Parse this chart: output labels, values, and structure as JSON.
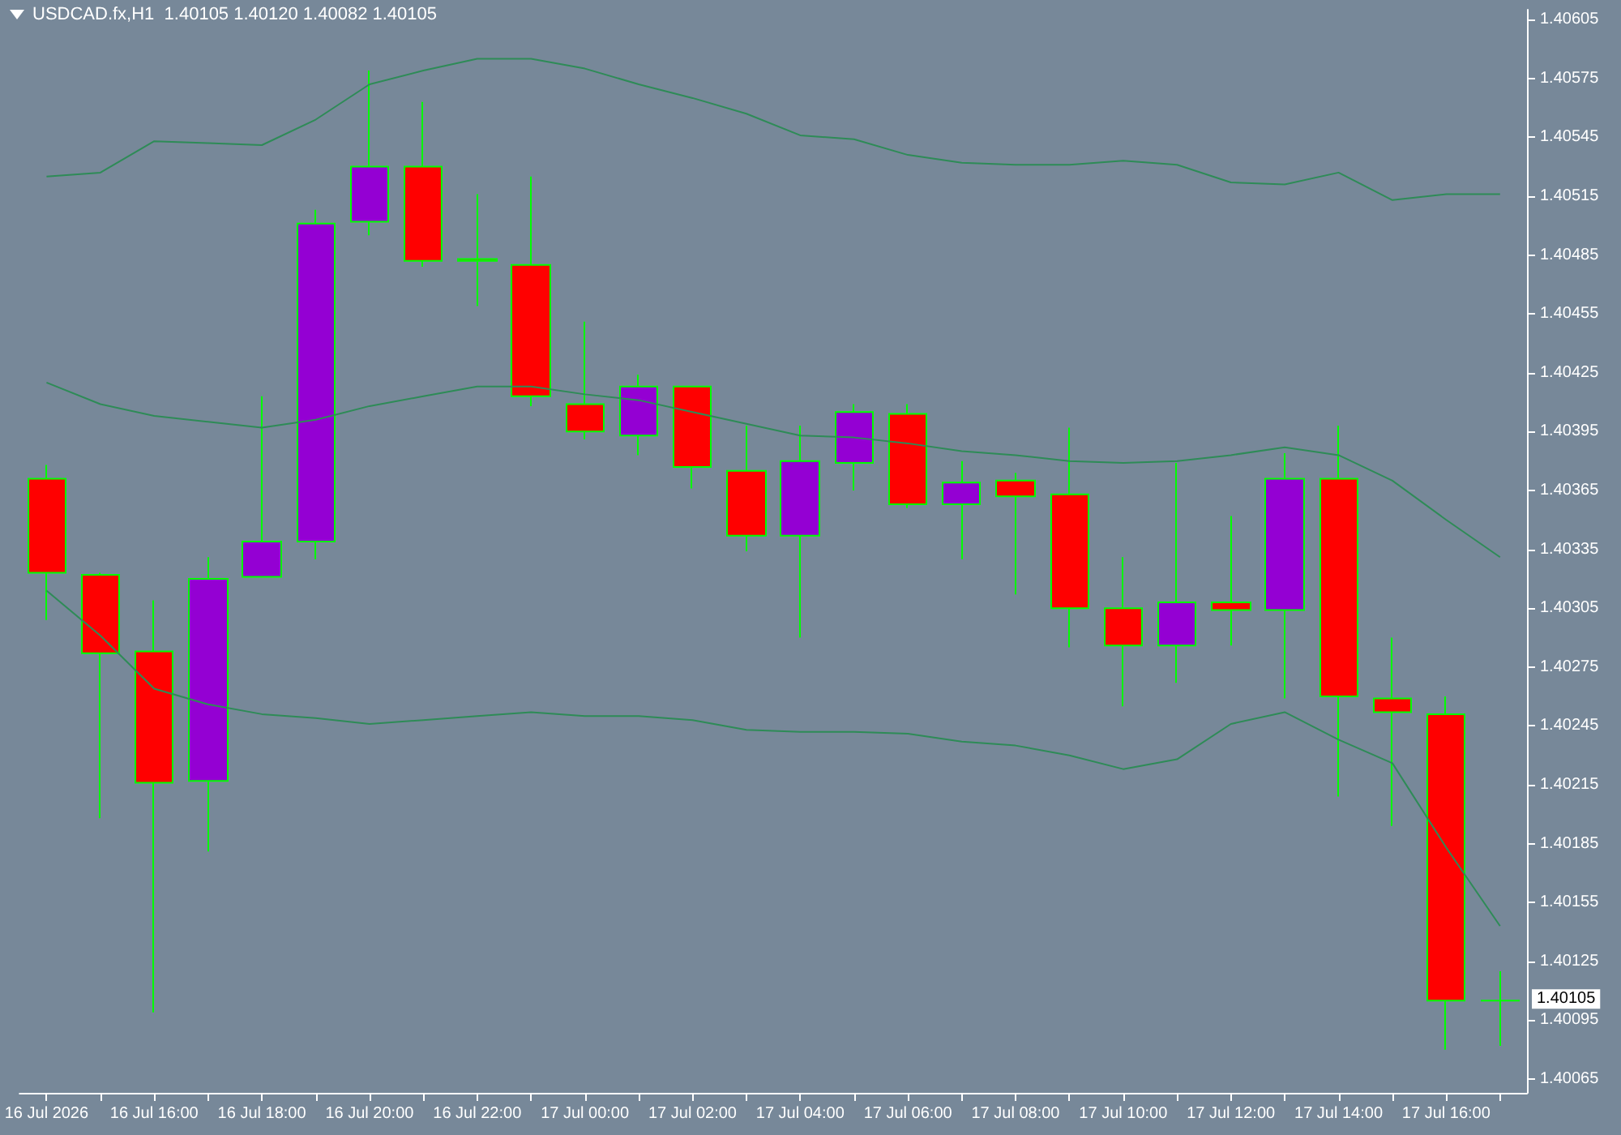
{
  "chart_data": {
    "type": "candlestick",
    "title": "USDCAD.fx,H1  1.40105 1.40120 1.40082 1.40105",
    "categories": [
      "16 Jul 2026",
      null,
      "16 Jul 16:00",
      null,
      "16 Jul 18:00",
      null,
      "16 Jul 20:00",
      null,
      "16 Jul 22:00",
      null,
      "17 Jul 00:00",
      null,
      "17 Jul 02:00",
      null,
      "17 Jul 04:00",
      null,
      "17 Jul 06:00",
      null,
      "17 Jul 08:00",
      null,
      "17 Jul 10:00",
      null,
      "17 Jul 12:00",
      null,
      "17 Jul 14:00",
      null,
      "17 Jul 16:00",
      null
    ],
    "ylim": [
      1.40058,
      1.4061
    ],
    "yticks": [
      1.40065,
      1.40095,
      1.40125,
      1.40155,
      1.40185,
      1.40215,
      1.40245,
      1.40275,
      1.40305,
      1.40335,
      1.40365,
      1.40395,
      1.40425,
      1.40455,
      1.40485,
      1.40515,
      1.40545,
      1.40575,
      1.40605
    ],
    "grid": false,
    "marker": "none",
    "annotations": [
      "1.40105"
    ],
    "series": [
      {
        "color": "#00ff00",
        "colors": [
          "#ff0000",
          "#ff0000",
          "#ff0000",
          "#9400d3",
          "#9400d3",
          "#9400d3",
          "#9400d3",
          "#ff0000",
          "#ff0000",
          "#ff0000",
          "#ff0000",
          "#9400d3",
          "#ff0000",
          "#ff0000",
          "#9400d3",
          "#9400d3",
          "#ff0000",
          "#9400d3",
          "#ff0000",
          "#ff0000",
          "#ff0000",
          "#9400d3",
          "#ff0000",
          "#9400d3",
          "#ff0000",
          "#ff0000",
          "#ff0000",
          "#00ff00"
        ],
        "ohlc": [
          [
            1.40371,
            1.40378,
            1.40299,
            1.40323
          ],
          [
            1.40322,
            1.40323,
            1.40198,
            1.40282
          ],
          [
            1.40283,
            1.40309,
            1.40099,
            1.40216
          ],
          [
            1.40217,
            1.40331,
            1.40181,
            1.4032
          ],
          [
            1.40321,
            1.40413,
            1.40321,
            1.40339
          ],
          [
            1.40339,
            1.40508,
            1.4033,
            1.40501
          ],
          [
            1.40502,
            1.40579,
            1.40495,
            1.4053
          ],
          [
            1.4053,
            1.40563,
            1.40479,
            1.40482
          ],
          [
            1.40483,
            1.40516,
            1.40459,
            1.40482
          ],
          [
            1.4048,
            1.40525,
            1.40408,
            1.40413
          ],
          [
            1.40409,
            1.40451,
            1.40391,
            1.40395
          ],
          [
            1.40393,
            1.40424,
            1.40383,
            1.40418
          ],
          [
            1.40418,
            1.40418,
            1.40366,
            1.40377
          ],
          [
            1.40375,
            1.40398,
            1.40334,
            1.40342
          ],
          [
            1.40342,
            1.40398,
            1.4029,
            1.4038
          ],
          [
            1.40379,
            1.40409,
            1.40365,
            1.40405
          ],
          [
            1.40404,
            1.40409,
            1.40356,
            1.40358
          ],
          [
            1.40358,
            1.4038,
            1.4033,
            1.40369
          ],
          [
            1.4037,
            1.40374,
            1.40312,
            1.40362
          ],
          [
            1.40363,
            1.40397,
            1.40285,
            1.40305
          ],
          [
            1.40305,
            1.40331,
            1.40255,
            1.40286
          ],
          [
            1.40286,
            1.40379,
            1.40267,
            1.40308
          ],
          [
            1.40308,
            1.40352,
            1.40286,
            1.40304
          ],
          [
            1.40304,
            1.40384,
            1.40259,
            1.40371
          ],
          [
            1.40371,
            1.40398,
            1.40209,
            1.4026
          ],
          [
            1.40259,
            1.4029,
            1.40194,
            1.40252
          ],
          [
            1.40251,
            1.4026,
            1.4008,
            1.40105
          ],
          [
            1.40105,
            1.4012,
            1.40082,
            1.40105
          ]
        ]
      },
      {
        "type": "line",
        "color": "#2e8b57",
        "values": [
          1.40525,
          1.40527,
          1.40543,
          1.40542,
          1.40541,
          1.40554,
          1.40572,
          1.40579,
          1.40585,
          1.40585,
          1.4058,
          1.40572,
          1.40565,
          1.40557,
          1.40546,
          1.40544,
          1.40536,
          1.40532,
          1.40531,
          1.40531,
          1.40533,
          1.40531,
          1.40522,
          1.40521,
          1.40527,
          1.40513,
          1.40516,
          1.40516
        ]
      },
      {
        "type": "line",
        "color": "#2e8b57",
        "values": [
          1.4042,
          1.40409,
          1.40403,
          1.404,
          1.40397,
          1.40401,
          1.40408,
          1.40413,
          1.40418,
          1.40418,
          1.40414,
          1.40411,
          1.40405,
          1.40399,
          1.40393,
          1.40392,
          1.40389,
          1.40385,
          1.40383,
          1.4038,
          1.40379,
          1.4038,
          1.40383,
          1.40387,
          1.40383,
          1.4037,
          1.4035,
          1.40331
        ]
      },
      {
        "type": "line",
        "color": "#2e8b57",
        "values": [
          1.40314,
          1.40291,
          1.40264,
          1.40256,
          1.40251,
          1.40249,
          1.40246,
          1.40248,
          1.4025,
          1.40252,
          1.4025,
          1.4025,
          1.40248,
          1.40243,
          1.40242,
          1.40242,
          1.40241,
          1.40237,
          1.40235,
          1.4023,
          1.40223,
          1.40228,
          1.40246,
          1.40252,
          1.40238,
          1.40226,
          1.40183,
          1.40143
        ]
      }
    ]
  }
}
